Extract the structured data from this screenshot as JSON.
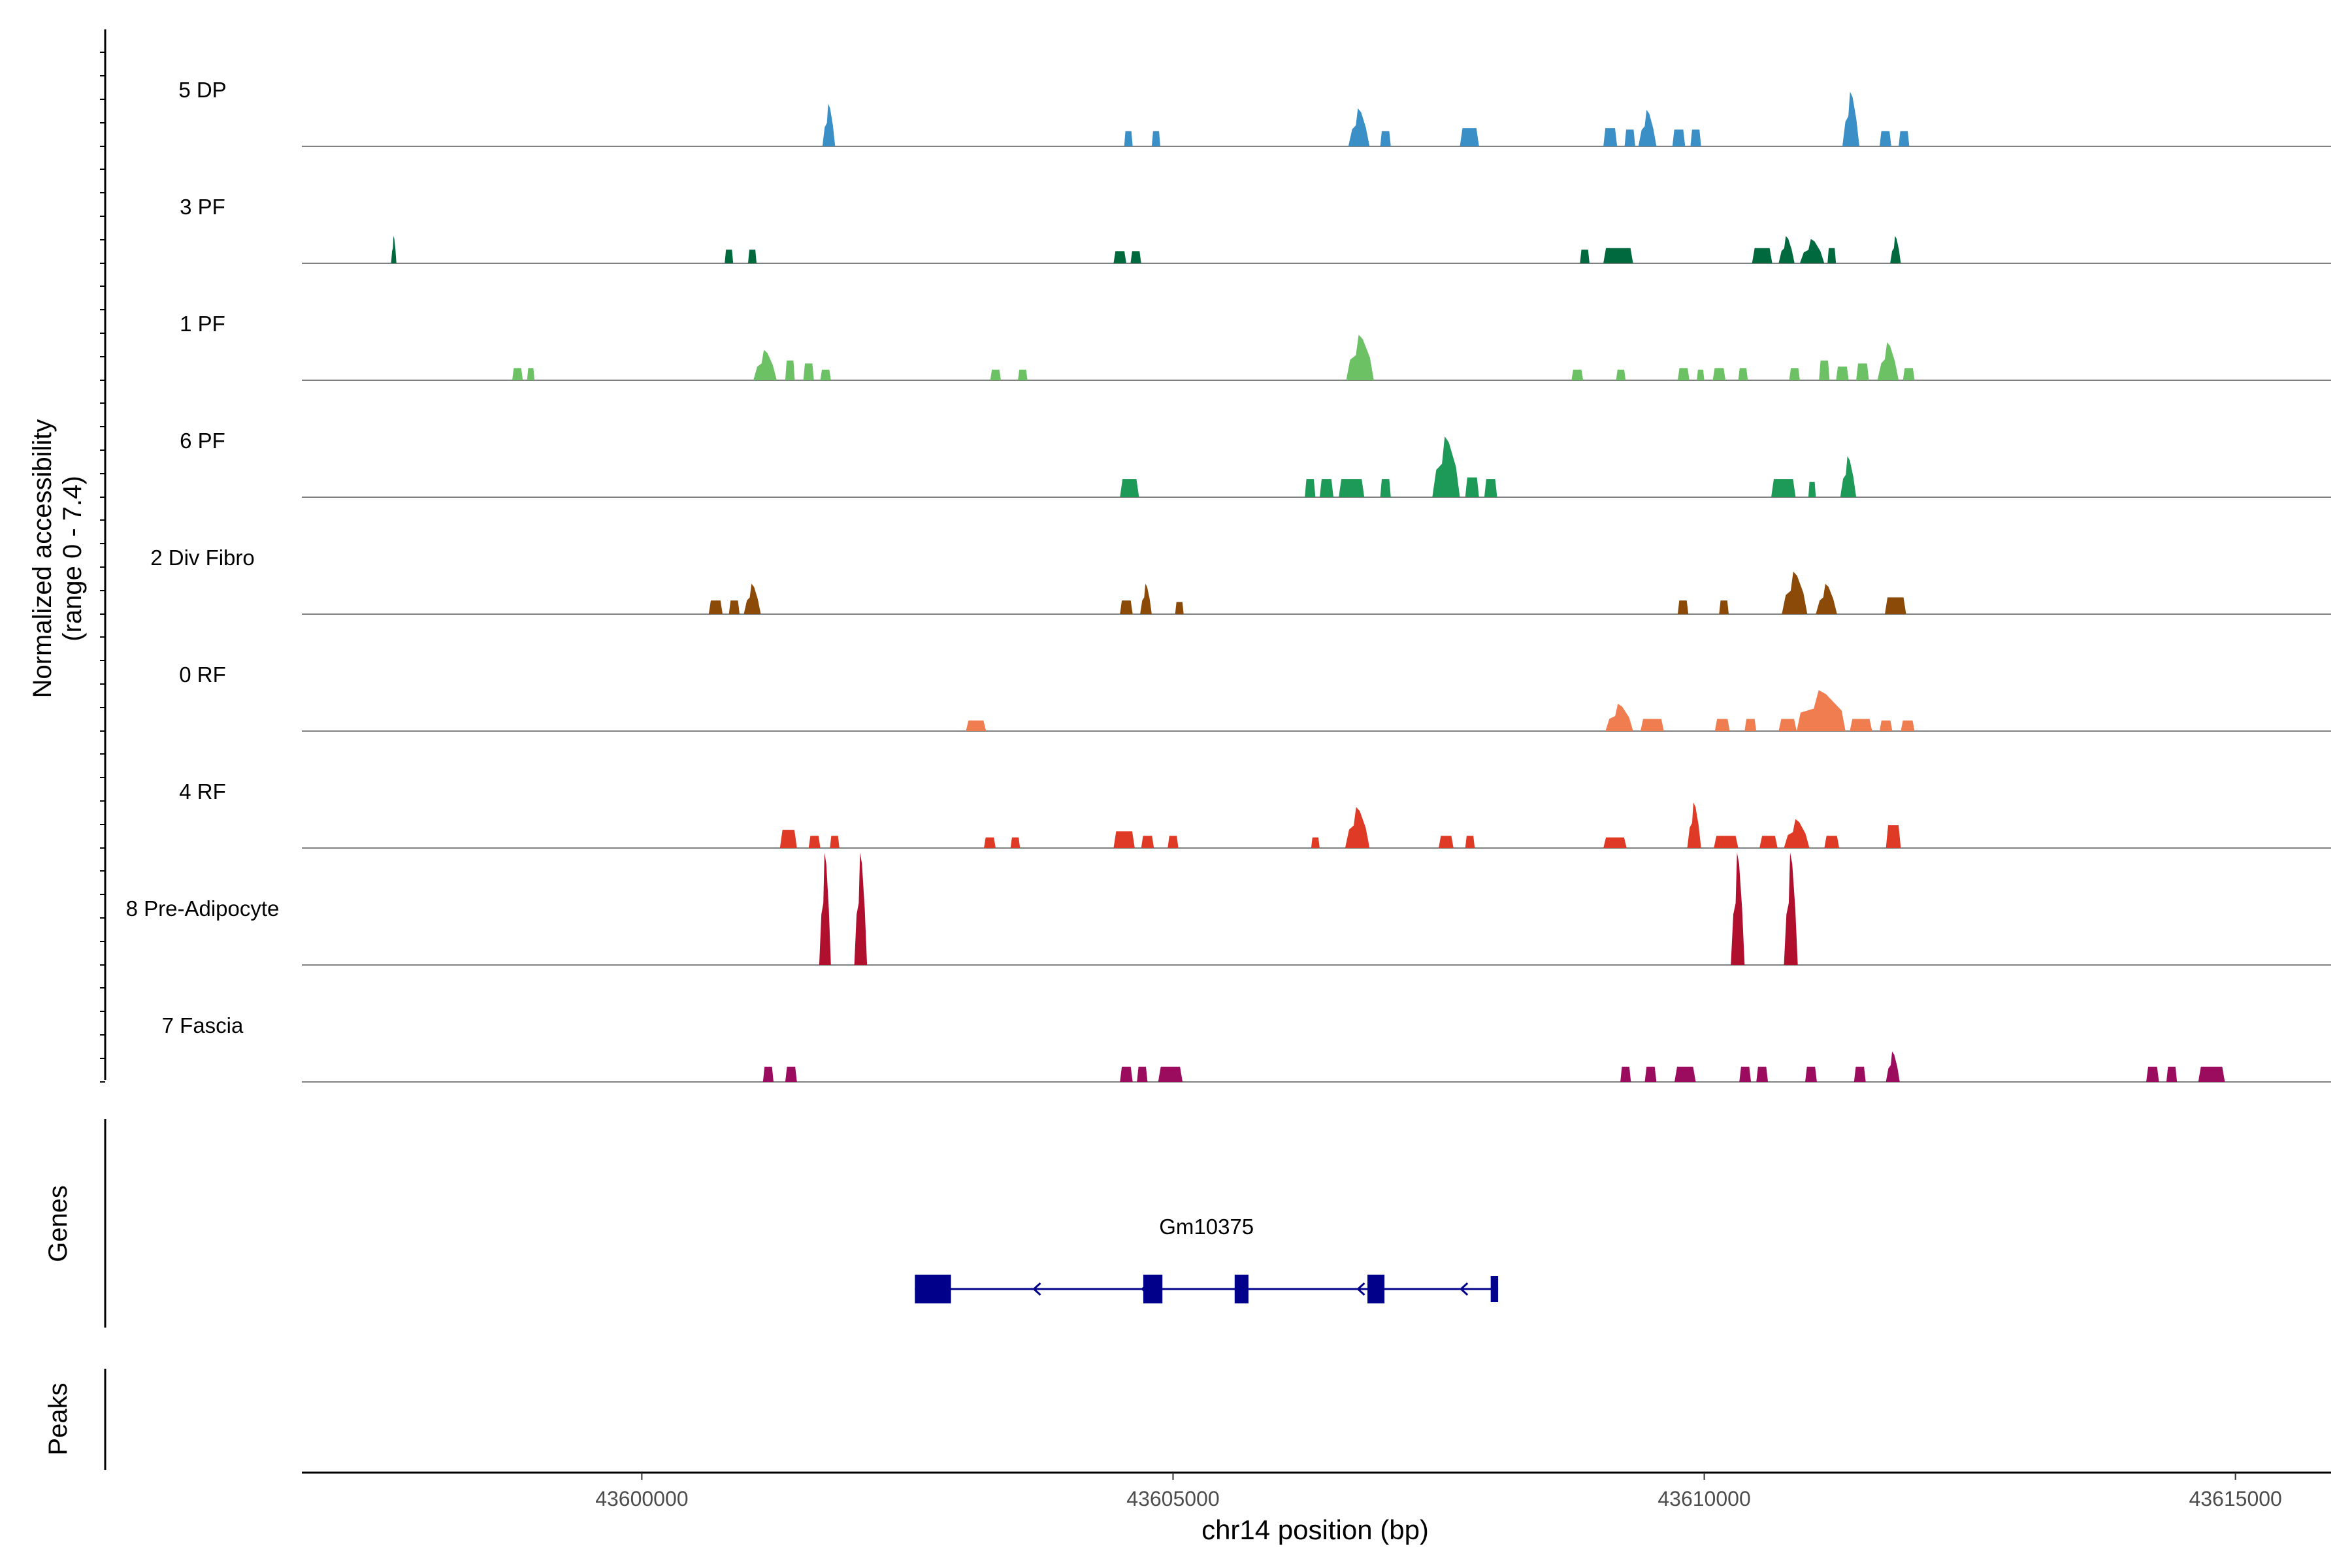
{
  "chart_data": {
    "type": "area",
    "title": "",
    "xlabel": "chr14 position (bp)",
    "ylabel_line1": "Normalized accessibility",
    "ylabel_line2": "(range 0 - 7.4)",
    "ylim": [
      0,
      7.4
    ],
    "xlim": [
      43596800,
      43615900
    ],
    "x_ticks": [
      43600000,
      43605000,
      43610000,
      43615000
    ],
    "x_tick_labels": [
      "43600000",
      "43605000",
      "43610000",
      "43615000"
    ],
    "genes_label": "Genes",
    "peaks_label": "Peaks",
    "tracks": [
      {
        "name": "5 DP",
        "color": "#3A8FC7",
        "peaks": [
          [
            43601700,
            43601820,
            2.8
          ],
          [
            43604540,
            43604620,
            1.0
          ],
          [
            43604800,
            43604880,
            1.0
          ],
          [
            43606650,
            43606850,
            2.5
          ],
          [
            43606950,
            43607050,
            1.0
          ],
          [
            43607700,
            43607880,
            1.2
          ],
          [
            43609050,
            43609180,
            1.2
          ],
          [
            43609250,
            43609350,
            1.1
          ],
          [
            43609380,
            43609550,
            2.4
          ],
          [
            43609700,
            43609820,
            1.1
          ],
          [
            43609870,
            43609970,
            1.1
          ],
          [
            43611300,
            43611460,
            3.6
          ],
          [
            43611650,
            43611760,
            1.0
          ],
          [
            43611830,
            43611930,
            1.0
          ]
        ]
      },
      {
        "name": "3 PF",
        "color": "#00693E",
        "peaks": [
          [
            43597640,
            43597690,
            1.8
          ],
          [
            43600780,
            43600860,
            0.9
          ],
          [
            43601000,
            43601080,
            0.9
          ],
          [
            43604440,
            43604560,
            0.8
          ],
          [
            43604600,
            43604700,
            0.8
          ],
          [
            43608830,
            43608920,
            0.9
          ],
          [
            43609050,
            43609330,
            1.0
          ],
          [
            43610450,
            43610640,
            1.0
          ],
          [
            43610700,
            43610850,
            1.8
          ],
          [
            43610900,
            43611130,
            1.6
          ],
          [
            43611160,
            43611240,
            1.0
          ],
          [
            43611750,
            43611850,
            1.8
          ]
        ]
      },
      {
        "name": "1 PF",
        "color": "#6CC165",
        "peaks": [
          [
            43598780,
            43598880,
            0.8
          ],
          [
            43598920,
            43598990,
            0.8
          ],
          [
            43601050,
            43601270,
            2.0
          ],
          [
            43601350,
            43601440,
            1.3
          ],
          [
            43601520,
            43601620,
            1.1
          ],
          [
            43601680,
            43601780,
            0.7
          ],
          [
            43603280,
            43603380,
            0.7
          ],
          [
            43603540,
            43603630,
            0.7
          ],
          [
            43606630,
            43606890,
            3.0
          ],
          [
            43608750,
            43608860,
            0.7
          ],
          [
            43609170,
            43609260,
            0.7
          ],
          [
            43609750,
            43609860,
            0.8
          ],
          [
            43609930,
            43610000,
            0.7
          ],
          [
            43610080,
            43610200,
            0.8
          ],
          [
            43610320,
            43610410,
            0.8
          ],
          [
            43610800,
            43610900,
            0.8
          ],
          [
            43611080,
            43611180,
            1.3
          ],
          [
            43611240,
            43611360,
            0.9
          ],
          [
            43611430,
            43611550,
            1.1
          ],
          [
            43611630,
            43611830,
            2.5
          ],
          [
            43611870,
            43611980,
            0.8
          ]
        ]
      },
      {
        "name": "6 PF",
        "color": "#1E9A58",
        "peaks": [
          [
            43604500,
            43604680,
            1.2
          ],
          [
            43606240,
            43606340,
            1.2
          ],
          [
            43606380,
            43606510,
            1.2
          ],
          [
            43606560,
            43606800,
            1.2
          ],
          [
            43606950,
            43607050,
            1.2
          ],
          [
            43607440,
            43607700,
            4.0
          ],
          [
            43607750,
            43607880,
            1.3
          ],
          [
            43607930,
            43608050,
            1.2
          ],
          [
            43610630,
            43610860,
            1.2
          ],
          [
            43610980,
            43611050,
            1.0
          ],
          [
            43611280,
            43611430,
            2.7
          ]
        ]
      },
      {
        "name": "2 Div Fibro",
        "color": "#8B4A08",
        "peaks": [
          [
            43600630,
            43600760,
            0.9
          ],
          [
            43600820,
            43600920,
            0.9
          ],
          [
            43600960,
            43601120,
            2.0
          ],
          [
            43604500,
            43604620,
            0.9
          ],
          [
            43604690,
            43604800,
            2.0
          ],
          [
            43605020,
            43605100,
            0.8
          ],
          [
            43609750,
            43609850,
            0.9
          ],
          [
            43610140,
            43610230,
            0.9
          ],
          [
            43610730,
            43610970,
            2.8
          ],
          [
            43611050,
            43611250,
            2.0
          ],
          [
            43611700,
            43611900,
            1.1
          ]
        ]
      },
      {
        "name": "0 RF",
        "color": "#F07D50",
        "peaks": [
          [
            43603050,
            43603240,
            0.7
          ],
          [
            43609070,
            43609330,
            1.8
          ],
          [
            43609400,
            43609620,
            0.8
          ],
          [
            43610100,
            43610240,
            0.8
          ],
          [
            43610380,
            43610490,
            0.8
          ],
          [
            43610700,
            43610870,
            0.8
          ],
          [
            43610870,
            43611330,
            2.7
          ],
          [
            43611370,
            43611580,
            0.8
          ],
          [
            43611650,
            43611770,
            0.7
          ],
          [
            43611850,
            43611980,
            0.7
          ]
        ]
      },
      {
        "name": "4 RF",
        "color": "#DF3A26",
        "peaks": [
          [
            43601300,
            43601460,
            1.2
          ],
          [
            43601570,
            43601680,
            0.8
          ],
          [
            43601770,
            43601860,
            0.8
          ],
          [
            43603220,
            43603330,
            0.7
          ],
          [
            43603470,
            43603560,
            0.7
          ],
          [
            43604440,
            43604640,
            1.1
          ],
          [
            43604700,
            43604820,
            0.8
          ],
          [
            43604950,
            43605050,
            0.8
          ],
          [
            43606300,
            43606380,
            0.7
          ],
          [
            43606620,
            43606850,
            2.7
          ],
          [
            43607500,
            43607640,
            0.8
          ],
          [
            43607750,
            43607840,
            0.8
          ],
          [
            43609050,
            43609270,
            0.7
          ],
          [
            43609840,
            43609970,
            3.0
          ],
          [
            43610090,
            43610320,
            0.8
          ],
          [
            43610520,
            43610690,
            0.8
          ],
          [
            43610750,
            43610990,
            1.9
          ],
          [
            43611130,
            43611270,
            0.8
          ],
          [
            43611710,
            43611850,
            1.5
          ]
        ]
      },
      {
        "name": "8 Pre-Adipocyte",
        "color": "#B0102E",
        "peaks": [
          [
            43601670,
            43601780,
            7.4
          ],
          [
            43602000,
            43602120,
            7.4
          ],
          [
            43610250,
            43610380,
            7.4
          ],
          [
            43610750,
            43610880,
            7.4
          ]
        ]
      },
      {
        "name": "7 Fascia",
        "color": "#9C0C5E",
        "peaks": [
          [
            43601140,
            43601240,
            1.0
          ],
          [
            43601350,
            43601460,
            1.0
          ],
          [
            43604500,
            43604620,
            1.0
          ],
          [
            43604660,
            43604760,
            1.0
          ],
          [
            43604860,
            43605090,
            1.0
          ],
          [
            43609210,
            43609310,
            1.0
          ],
          [
            43609440,
            43609550,
            1.0
          ],
          [
            43609720,
            43609920,
            1.0
          ],
          [
            43610330,
            43610440,
            1.0
          ],
          [
            43610490,
            43610600,
            1.0
          ],
          [
            43610950,
            43611060,
            1.0
          ],
          [
            43611410,
            43611520,
            1.0
          ],
          [
            43611710,
            43611840,
            2.0
          ],
          [
            43614160,
            43614280,
            1.0
          ],
          [
            43614350,
            43614450,
            1.0
          ],
          [
            43614650,
            43614900,
            1.0
          ]
        ]
      }
    ],
    "gene": {
      "name": "Gm10375",
      "color": "#00008B",
      "strand": "-",
      "start": 43602570,
      "end": 43608060,
      "exons": [
        [
          43602570,
          43602910,
          "thick"
        ],
        [
          43604720,
          43604900,
          "thick"
        ],
        [
          43605580,
          43605710,
          "thick"
        ],
        [
          43606830,
          43606990,
          "thick"
        ],
        [
          43607990,
          43608060,
          "thin"
        ]
      ],
      "arrows": [
        43603690,
        43604710,
        43606740,
        43607710
      ]
    }
  }
}
